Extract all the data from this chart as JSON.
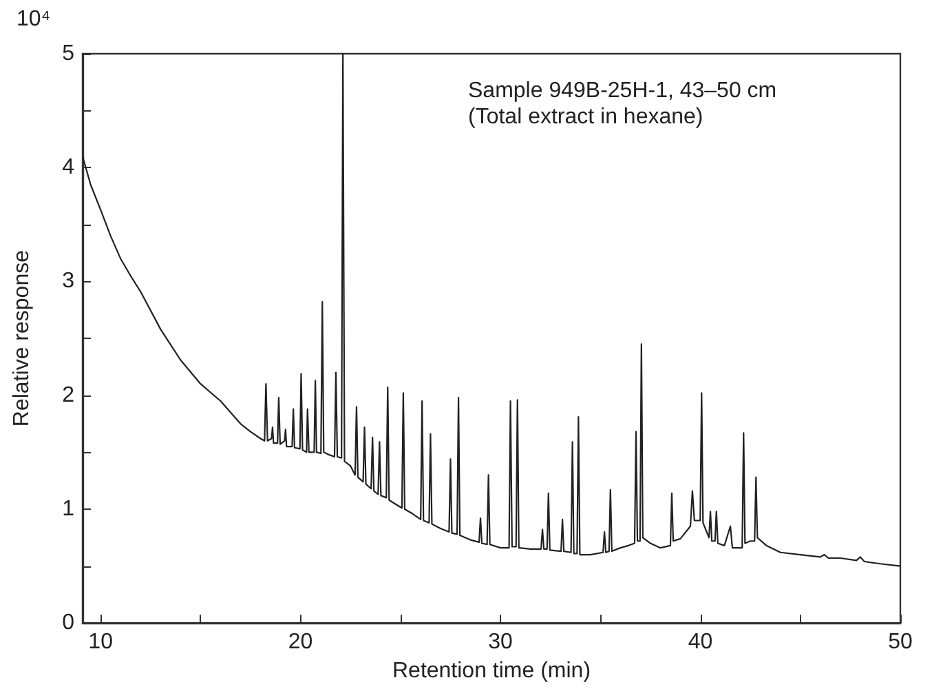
{
  "chart_data": {
    "type": "line",
    "xlabel": "Retention time (min)",
    "ylabel": "Relative response",
    "annotations": [
      "10⁴",
      "Sample 949B-25H-1, 43–50 cm",
      "(Total extract in hexane)"
    ],
    "xlim": [
      9.1,
      50
    ],
    "ylim": [
      0,
      5
    ],
    "xticks": [
      10,
      {
        "value": 15,
        "label": null
      },
      20,
      {
        "value": 25,
        "label": null
      },
      30,
      {
        "value": 35,
        "label": null
      },
      40,
      {
        "value": 45,
        "label": null
      },
      50
    ],
    "yticks": [
      0,
      {
        "value": 0.5,
        "label": null
      },
      1,
      {
        "value": 1.5,
        "label": null
      },
      2,
      {
        "value": 2.5,
        "label": null
      },
      3,
      {
        "value": 3.5,
        "label": null
      },
      4,
      {
        "value": 4.5,
        "label": null
      },
      5
    ],
    "grid": false,
    "marker": "none",
    "line_style": "solid",
    "series": [
      {
        "color": "#222222",
        "x": [
          9.1,
          9.5,
          10,
          10.5,
          11,
          11.5,
          12,
          13,
          14,
          15,
          16,
          17,
          17.5,
          18,
          18.2,
          18.27,
          18.35,
          18.55,
          18.6,
          18.65,
          18.85,
          18.91,
          18.98,
          19.2,
          19.25,
          19.3,
          19.58,
          19.64,
          19.7,
          19.97,
          20.03,
          20.1,
          20.3,
          20.35,
          20.42,
          20.68,
          20.74,
          20.8,
          21.02,
          21.09,
          21.16,
          21.4,
          21.7,
          21.77,
          21.84,
          22.05,
          22.12,
          22.2,
          22.5,
          22.73,
          22.8,
          22.87,
          23.13,
          23.2,
          23.27,
          23.53,
          23.6,
          23.67,
          23.88,
          23.95,
          24.02,
          24.29,
          24.36,
          24.43,
          24.7,
          25.07,
          25.14,
          25.21,
          25.6,
          26.01,
          26.08,
          26.15,
          26.43,
          26.5,
          26.57,
          27.0,
          27.43,
          27.5,
          27.57,
          27.83,
          27.9,
          27.97,
          28.5,
          28.93,
          29.0,
          29.07,
          29.33,
          29.4,
          29.47,
          30.0,
          30.43,
          30.5,
          30.58,
          30.78,
          30.85,
          30.92,
          31.5,
          32.03,
          32.1,
          32.17,
          32.33,
          32.4,
          32.47,
          33.03,
          33.1,
          33.17,
          33.53,
          33.6,
          33.67,
          33.83,
          33.9,
          33.97,
          34.5,
          35.13,
          35.2,
          35.27,
          35.43,
          35.5,
          35.57,
          36.0,
          36.4,
          36.71,
          36.78,
          36.85,
          36.98,
          37.05,
          37.12,
          37.5,
          38.0,
          38.5,
          38.57,
          38.64,
          39.0,
          39.5,
          39.6,
          39.7,
          39.99,
          40.06,
          40.13,
          40.43,
          40.5,
          40.57,
          40.73,
          40.8,
          40.87,
          41.2,
          41.5,
          41.6,
          42.09,
          42.16,
          42.23,
          42.5,
          42.71,
          42.78,
          42.85,
          43.3,
          44,
          45,
          46,
          46.2,
          46.4,
          47,
          47.8,
          48,
          48.2,
          49,
          50
        ],
        "values": [
          4.1,
          3.85,
          3.63,
          3.4,
          3.2,
          3.05,
          2.91,
          2.58,
          2.31,
          2.1,
          1.95,
          1.75,
          1.68,
          1.62,
          1.6,
          2.1,
          1.6,
          1.62,
          1.72,
          1.58,
          1.58,
          1.98,
          1.57,
          1.6,
          1.7,
          1.55,
          1.55,
          1.88,
          1.54,
          1.53,
          2.19,
          1.52,
          1.5,
          1.88,
          1.5,
          1.5,
          2.13,
          1.5,
          1.49,
          2.82,
          1.5,
          1.48,
          1.46,
          2.2,
          1.46,
          1.45,
          5.0,
          1.42,
          1.38,
          1.3,
          1.9,
          1.28,
          1.24,
          1.72,
          1.22,
          1.18,
          1.63,
          1.16,
          1.13,
          1.59,
          1.12,
          1.1,
          2.07,
          1.08,
          1.05,
          1.01,
          2.02,
          1.0,
          0.96,
          0.91,
          1.95,
          0.9,
          0.88,
          1.66,
          0.87,
          0.83,
          0.8,
          1.44,
          0.79,
          0.78,
          1.98,
          0.77,
          0.73,
          0.71,
          0.92,
          0.7,
          0.69,
          1.3,
          0.69,
          0.66,
          0.66,
          1.95,
          0.67,
          0.67,
          1.96,
          0.66,
          0.65,
          0.65,
          0.82,
          0.65,
          0.65,
          1.14,
          0.64,
          0.63,
          0.91,
          0.63,
          0.62,
          1.59,
          0.61,
          0.61,
          1.81,
          0.6,
          0.6,
          0.62,
          0.8,
          0.62,
          0.63,
          1.17,
          0.63,
          0.66,
          0.68,
          0.7,
          1.68,
          0.72,
          0.72,
          2.45,
          0.75,
          0.7,
          0.66,
          0.68,
          1.14,
          0.72,
          0.74,
          0.85,
          1.16,
          0.9,
          0.9,
          2.02,
          0.88,
          0.75,
          0.98,
          0.72,
          0.72,
          0.98,
          0.7,
          0.68,
          0.85,
          0.66,
          0.66,
          1.67,
          0.7,
          0.72,
          0.72,
          1.28,
          0.75,
          0.68,
          0.62,
          0.6,
          0.58,
          0.6,
          0.57,
          0.57,
          0.55,
          0.58,
          0.54,
          0.52,
          0.5
        ]
      }
    ]
  }
}
